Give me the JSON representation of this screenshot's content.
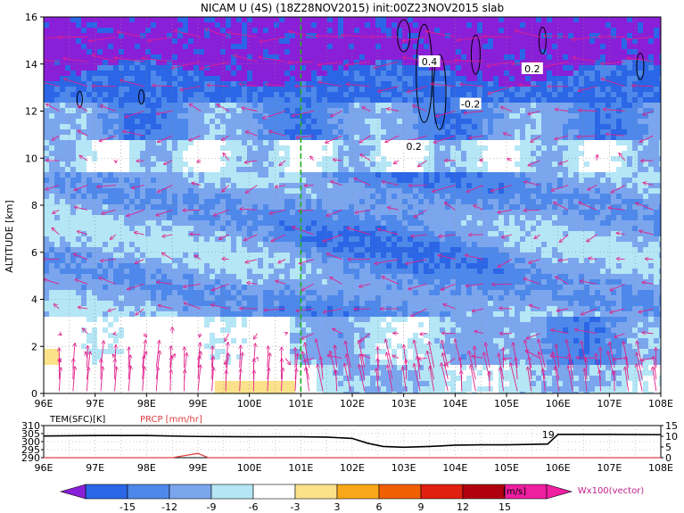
{
  "chart_data": [
    {
      "type": "heatmap",
      "title": "NICAM U (4S) (18Z28NOV2015) init:00Z23NOV2015 slab",
      "ylabel": "ALTITUDE [km]",
      "xlim": [
        96,
        108
      ],
      "ylim": [
        0,
        16
      ],
      "x_ticks": [
        "96E",
        "97E",
        "98E",
        "99E",
        "100E",
        "101E",
        "102E",
        "103E",
        "104E",
        "105E",
        "106E",
        "107E",
        "108E"
      ],
      "y_ticks": [
        "0",
        "2",
        "4",
        "6",
        "8",
        "10",
        "12",
        "14",
        "16"
      ],
      "grid": true,
      "marker_line_lon": 101,
      "contour_labels": [
        {
          "text": "0.4",
          "lon": 103.5,
          "alt": 14.1
        },
        {
          "text": "0.2",
          "lon": 105.5,
          "alt": 13.8
        },
        {
          "text": "-0.2",
          "lon": 104.3,
          "alt": 12.3
        },
        {
          "text": "0.2",
          "lon": 103.2,
          "alt": 10.5
        }
      ],
      "vector_label": "Wx100(vector)"
    },
    {
      "type": "line",
      "xlim": [
        96,
        108
      ],
      "left_label": "TEM(SFC)[K]",
      "right_label": "PRCP [mm/hr]",
      "left_ticks": [
        "310",
        "305",
        "300",
        "295",
        "290"
      ],
      "right_ticks": [
        "15",
        "10",
        "5",
        "0"
      ],
      "left_ylim": [
        290,
        310
      ],
      "right_ylim": [
        0,
        15
      ],
      "series": [
        {
          "name": "TEM(SFC)[K]",
          "color": "#000000",
          "x": [
            96.0,
            97.0,
            98.0,
            99.0,
            100.0,
            101.0,
            101.5,
            102.0,
            102.3,
            102.6,
            103.0,
            103.5,
            104.0,
            104.5,
            105.0,
            105.5,
            105.8,
            106.0,
            107.0,
            108.0
          ],
          "y": [
            303.5,
            303.8,
            303.8,
            303.2,
            303.0,
            303.0,
            302.8,
            302.0,
            299.0,
            297.0,
            296.5,
            297.0,
            297.8,
            298.0,
            298.0,
            298.3,
            298.5,
            304.5,
            304.5,
            304.3
          ]
        },
        {
          "name": "PRCP [mm/hr]",
          "color": "#e04040",
          "x": [
            96.0,
            98.5,
            98.8,
            99.0,
            99.2,
            108.0
          ],
          "y": [
            0,
            0,
            1.2,
            2.0,
            0,
            0
          ]
        }
      ],
      "annotation": {
        "text": "19",
        "lon": 105.95
      }
    }
  ],
  "colorbar": {
    "tick_labels": [
      "-15",
      "-12",
      "-9",
      "-6",
      "-3",
      "3",
      "6",
      "9",
      "12",
      "15"
    ],
    "unit": "[m/s]",
    "colors": [
      "#8a1fd8",
      "#2a66e6",
      "#4e88ea",
      "#7ba6ee",
      "#b4e6f6",
      "#ffffff",
      "#fbe28a",
      "#f8a818",
      "#f06000",
      "#e02010",
      "#b00010",
      "#ee1fa0"
    ]
  }
}
